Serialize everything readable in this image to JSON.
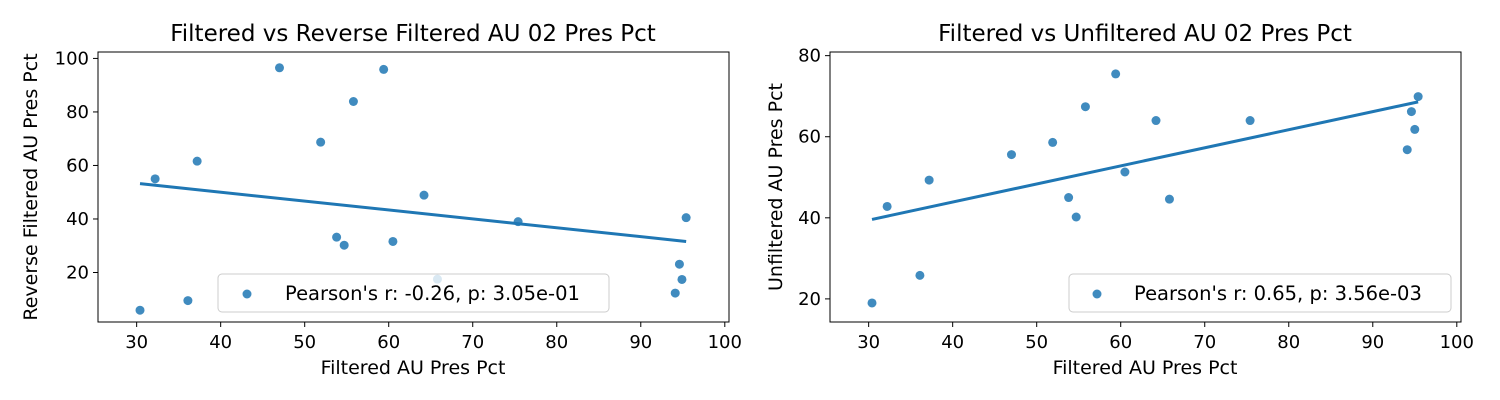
{
  "colors": {
    "point": "#1f77b4",
    "line": "#1f77b4",
    "axis": "#000000",
    "legend_border": "#cccccc",
    "background": "#ffffff"
  },
  "chart_data": [
    {
      "type": "scatter",
      "title": "Filtered vs Reverse Filtered AU 02 Pres Pct",
      "xlabel": "Filtered AU Pres Pct",
      "ylabel": "Reverse Filtered AU Pres Pct",
      "xlim": [
        25.4,
        100.5
      ],
      "ylim": [
        1.5,
        102.4
      ],
      "xticks": [
        30,
        40,
        50,
        60,
        70,
        80,
        90,
        100
      ],
      "yticks": [
        20,
        40,
        60,
        80,
        100
      ],
      "grid": false,
      "legend_position": "lower-right",
      "series": [
        {
          "name": "Pearson's r: -0.26, p: 3.05e-01",
          "x": [
            30.4,
            32.2,
            36.1,
            37.2,
            47.0,
            51.9,
            53.8,
            54.7,
            55.8,
            59.4,
            60.5,
            64.2,
            65.8,
            75.4,
            94.1,
            94.6,
            94.9,
            95.4
          ],
          "y": [
            5.9,
            55.0,
            9.5,
            61.6,
            96.5,
            68.7,
            33.2,
            30.2,
            83.9,
            95.9,
            31.6,
            48.9,
            17.5,
            39.0,
            12.3,
            23.1,
            17.4,
            40.5
          ]
        }
      ],
      "regression_line": {
        "x": [
          30.4,
          95.4
        ],
        "y": [
          53.2,
          31.6
        ]
      }
    },
    {
      "type": "scatter",
      "title": "Filtered vs Unfiltered AU 02 Pres Pct",
      "xlabel": "Filtered AU Pres Pct",
      "ylabel": "Unfiltered AU Pres Pct",
      "xlim": [
        25.4,
        100.5
      ],
      "ylim": [
        14.3,
        80.9
      ],
      "xticks": [
        30,
        40,
        50,
        60,
        70,
        80,
        90,
        100
      ],
      "yticks": [
        20,
        40,
        60,
        80
      ],
      "grid": false,
      "legend_position": "lower-right",
      "series": [
        {
          "name": "Pearson's r: 0.65, p: 3.56e-03",
          "x": [
            30.4,
            32.2,
            36.1,
            37.2,
            47.0,
            51.9,
            53.8,
            54.7,
            55.8,
            59.4,
            60.5,
            64.2,
            65.8,
            75.4,
            94.1,
            94.6,
            95.0,
            95.4
          ],
          "y": [
            19.0,
            42.8,
            25.8,
            49.3,
            55.6,
            58.6,
            45.0,
            40.2,
            67.4,
            75.5,
            51.3,
            64.0,
            44.6,
            64.0,
            56.8,
            66.2,
            61.8,
            69.9
          ]
        }
      ],
      "regression_line": {
        "x": [
          30.4,
          95.4
        ],
        "y": [
          39.6,
          68.6
        ]
      }
    }
  ]
}
